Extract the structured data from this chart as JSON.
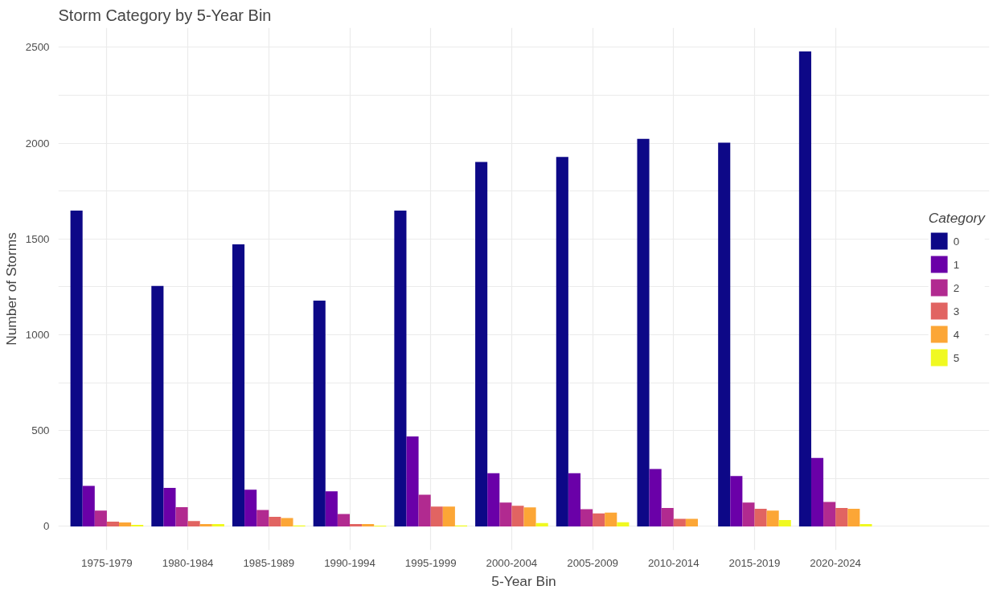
{
  "chart_data": {
    "type": "bar",
    "title": "Storm Category by 5-Year Bin",
    "xlabel": "5-Year Bin",
    "ylabel": "Number of Storms",
    "legend_title": "Category",
    "categories": [
      "1975-1979",
      "1980-1984",
      "1985-1989",
      "1990-1994",
      "1995-1999",
      "2000-2004",
      "2005-2009",
      "2010-2014",
      "2015-2019",
      "2020-2024"
    ],
    "series": [
      {
        "name": "0",
        "color": "#0d0887",
        "values": [
          1648,
          1255,
          1472,
          1178,
          1648,
          1902,
          1928,
          2022,
          2002,
          2478
        ]
      },
      {
        "name": "1",
        "color": "#6a00a8",
        "values": [
          212,
          201,
          192,
          183,
          469,
          278,
          278,
          300,
          263,
          357
        ]
      },
      {
        "name": "2",
        "color": "#b12a90",
        "values": [
          83,
          100,
          86,
          65,
          165,
          125,
          90,
          96,
          124,
          128
        ]
      },
      {
        "name": "3",
        "color": "#e16462",
        "values": [
          25,
          28,
          50,
          12,
          103,
          108,
          68,
          40,
          92,
          96
        ]
      },
      {
        "name": "4",
        "color": "#fca636",
        "values": [
          21,
          12,
          44,
          12,
          103,
          99,
          72,
          40,
          83,
          92
        ]
      },
      {
        "name": "5",
        "color": "#f0f921",
        "values": [
          8,
          12,
          5,
          4,
          5,
          18,
          22,
          null,
          33,
          12
        ]
      }
    ],
    "ylim": [
      -124,
      2602
    ],
    "yticks": [
      0,
      {
        "value": 250,
        "label": null
      },
      500,
      {
        "value": 750,
        "label": null
      },
      1000,
      {
        "value": 1250,
        "label": null
      },
      1500,
      {
        "value": 1750,
        "label": null
      },
      2000,
      {
        "value": 2250,
        "label": null
      },
      2500
    ],
    "grid": true,
    "legend": "right"
  }
}
